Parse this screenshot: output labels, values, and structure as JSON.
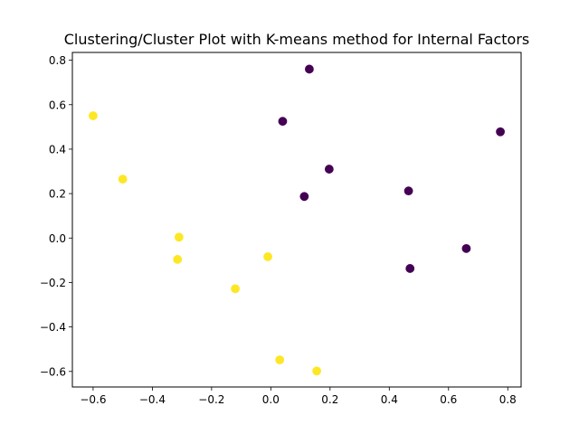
{
  "chart_data": {
    "type": "scatter",
    "title": "Clustering/Cluster Plot with K-means method for Internal Factors",
    "xlabel": "",
    "ylabel": "",
    "xlim": [
      -0.67,
      0.845
    ],
    "ylim": [
      -0.67,
      0.835
    ],
    "xticks": [
      -0.6,
      -0.4,
      -0.2,
      0.0,
      0.2,
      0.4,
      0.6,
      0.8
    ],
    "xtick_labels": [
      "−0.6",
      "−0.4",
      "−0.2",
      "0.0",
      "0.2",
      "0.4",
      "0.6",
      "0.8"
    ],
    "yticks": [
      -0.6,
      -0.4,
      -0.2,
      0.0,
      0.2,
      0.4,
      0.6,
      0.8
    ],
    "ytick_labels": [
      "−0.6",
      "−0.4",
      "−0.2",
      "0.0",
      "0.2",
      "0.4",
      "0.6",
      "0.8"
    ],
    "grid": false,
    "series": [
      {
        "color": "#440154",
        "points": [
          {
            "x": 0.13,
            "y": 0.76
          },
          {
            "x": 0.04,
            "y": 0.525
          },
          {
            "x": 0.775,
            "y": 0.478
          },
          {
            "x": 0.197,
            "y": 0.31
          },
          {
            "x": 0.465,
            "y": 0.212
          },
          {
            "x": 0.113,
            "y": 0.187
          },
          {
            "x": 0.66,
            "y": -0.047
          },
          {
            "x": 0.47,
            "y": -0.137
          }
        ]
      },
      {
        "color": "#fde725",
        "points": [
          {
            "x": -0.6,
            "y": 0.55
          },
          {
            "x": -0.5,
            "y": 0.265
          },
          {
            "x": -0.31,
            "y": 0.004
          },
          {
            "x": -0.315,
            "y": -0.096
          },
          {
            "x": -0.01,
            "y": -0.084
          },
          {
            "x": -0.12,
            "y": -0.228
          },
          {
            "x": 0.03,
            "y": -0.548
          },
          {
            "x": 0.155,
            "y": -0.598
          }
        ]
      }
    ]
  }
}
